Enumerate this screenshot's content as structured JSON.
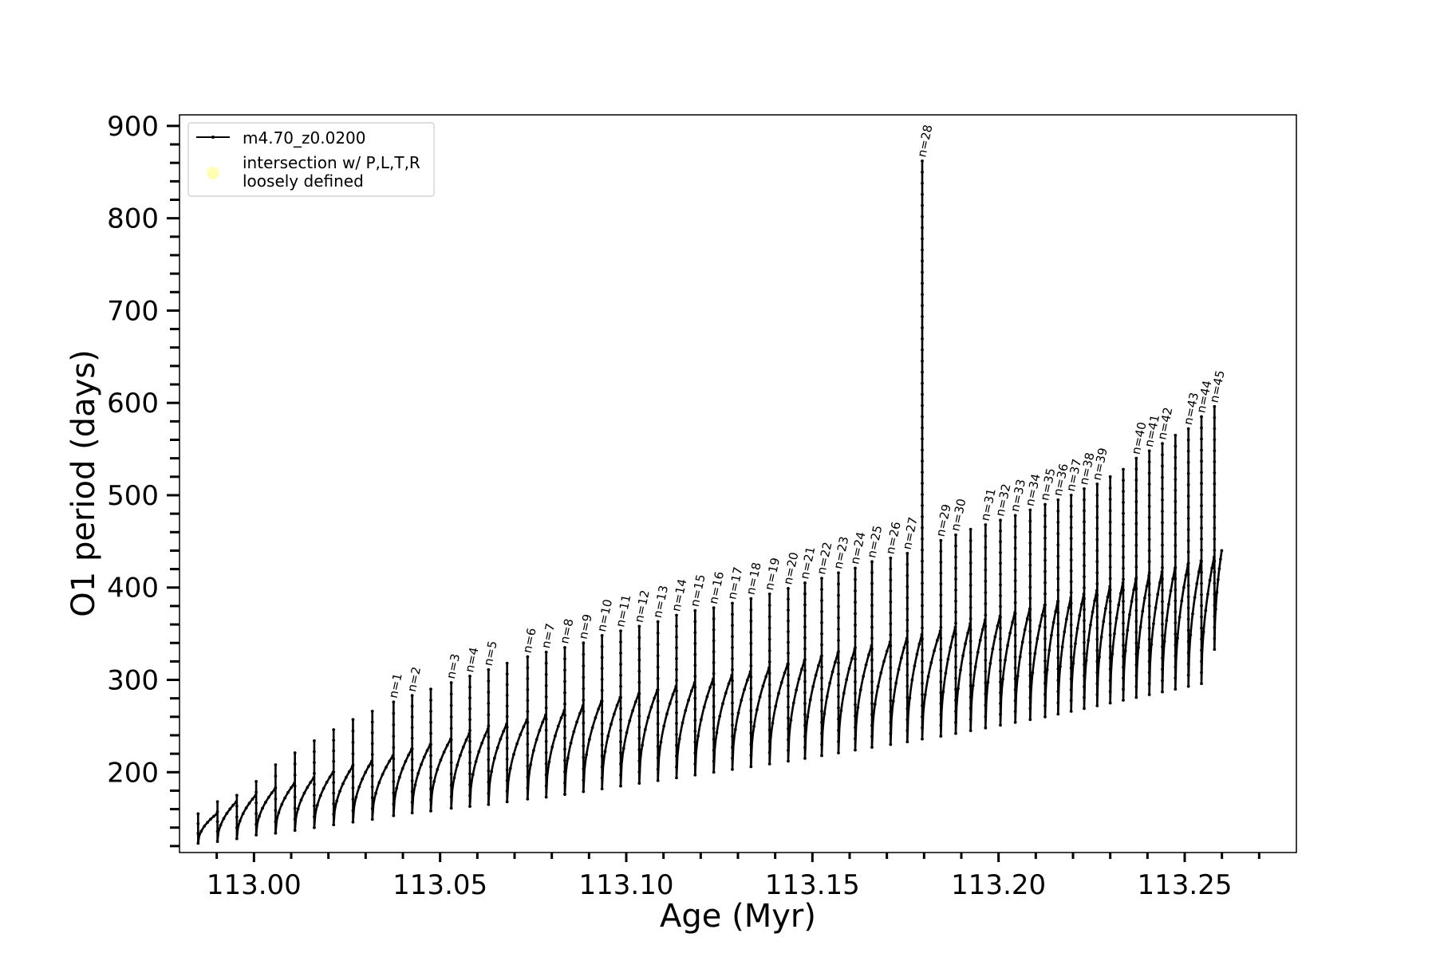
{
  "chart_data": {
    "type": "line",
    "xlabel": "Age (Myr)",
    "ylabel": "O1 period (days)",
    "xlim": [
      112.98,
      113.28
    ],
    "ylim": [
      113,
      912
    ],
    "x_ticks": [
      113.0,
      113.05,
      113.1,
      113.15,
      113.2,
      113.25
    ],
    "x_tick_labels": [
      "113.00",
      "113.05",
      "113.10",
      "113.15",
      "113.20",
      "113.25"
    ],
    "y_ticks": [
      200,
      300,
      400,
      500,
      600,
      700,
      800,
      900
    ],
    "y_tick_labels": [
      "200",
      "300",
      "400",
      "500",
      "600",
      "700",
      "800",
      "900"
    ],
    "grid": false,
    "legend_position": "top-left",
    "legend": {
      "entries": [
        {
          "label": "m4.70_z0.0200",
          "kind": "line",
          "color": "#000000"
        },
        {
          "label_lines": [
            "intersection w/ P,L,T,R",
            "loosely defined"
          ],
          "kind": "marker",
          "color": "#ffffb3"
        }
      ]
    },
    "series": [
      {
        "name": "m4.70_z0.0200",
        "color": "#000000",
        "description_of_shape": "sawtooth: repeated pulses, each rising from a trough to a local max then dropping",
        "pulses": [
          {
            "x": 112.985,
            "trough": 123,
            "peak": 155,
            "spike": null,
            "label": null
          },
          {
            "x": 112.9902,
            "trough": 125,
            "peak": 168,
            "spike": null,
            "label": null
          },
          {
            "x": 112.9954,
            "trough": 128,
            "peak": 175,
            "spike": null,
            "label": null
          },
          {
            "x": 113.0006,
            "trough": 132,
            "peak": 182,
            "spike": 190,
            "label": null
          },
          {
            "x": 113.0058,
            "trough": 134,
            "peak": 188,
            "spike": 208,
            "label": null
          },
          {
            "x": 113.011,
            "trough": 137,
            "peak": 194,
            "spike": 221,
            "label": null
          },
          {
            "x": 113.0162,
            "trough": 140,
            "peak": 200,
            "spike": 234,
            "label": null
          },
          {
            "x": 113.0214,
            "trough": 143,
            "peak": 206,
            "spike": 246,
            "label": null
          },
          {
            "x": 113.0266,
            "trough": 146,
            "peak": 212,
            "spike": 257,
            "label": null
          },
          {
            "x": 113.0318,
            "trough": 149,
            "peak": 218,
            "spike": 266,
            "label": null
          },
          {
            "x": 113.0375,
            "trough": 153,
            "peak": 225,
            "spike": 276,
            "label": "n=1"
          },
          {
            "x": 113.0425,
            "trough": 156,
            "peak": 230,
            "spike": 283,
            "label": "n=2"
          },
          {
            "x": 113.0475,
            "trough": 158,
            "peak": 236,
            "spike": 290,
            "label": null
          },
          {
            "x": 113.053,
            "trough": 161,
            "peak": 242,
            "spike": 297,
            "label": "n=3"
          },
          {
            "x": 113.058,
            "trough": 163,
            "peak": 247,
            "spike": 304,
            "label": "n=4"
          },
          {
            "x": 113.063,
            "trough": 165,
            "peak": 252,
            "spike": 311,
            "label": "n=5"
          },
          {
            "x": 113.068,
            "trough": 168,
            "peak": 257,
            "spike": 318,
            "label": null
          },
          {
            "x": 113.0735,
            "trough": 171,
            "peak": 262,
            "spike": 325,
            "label": "n=6"
          },
          {
            "x": 113.0785,
            "trough": 173,
            "peak": 267,
            "spike": 330,
            "label": "n=7"
          },
          {
            "x": 113.0835,
            "trough": 176,
            "peak": 272,
            "spike": 335,
            "label": "n=8"
          },
          {
            "x": 113.0885,
            "trough": 179,
            "peak": 277,
            "spike": 340,
            "label": "n=9"
          },
          {
            "x": 113.0935,
            "trough": 182,
            "peak": 281,
            "spike": 348,
            "label": "n=10"
          },
          {
            "x": 113.0985,
            "trough": 185,
            "peak": 285,
            "spike": 353,
            "label": "n=11"
          },
          {
            "x": 113.1035,
            "trough": 188,
            "peak": 289,
            "spike": 358,
            "label": "n=12"
          },
          {
            "x": 113.1085,
            "trough": 191,
            "peak": 293,
            "spike": 363,
            "label": "n=13"
          },
          {
            "x": 113.1135,
            "trough": 194,
            "peak": 297,
            "spike": 370,
            "label": "n=14"
          },
          {
            "x": 113.1185,
            "trough": 197,
            "peak": 301,
            "spike": 375,
            "label": "n=15"
          },
          {
            "x": 113.1235,
            "trough": 200,
            "peak": 305,
            "spike": 378,
            "label": "n=16"
          },
          {
            "x": 113.1285,
            "trough": 203,
            "peak": 309,
            "spike": 383,
            "label": "n=17"
          },
          {
            "x": 113.1335,
            "trough": 206,
            "peak": 313,
            "spike": 388,
            "label": "n=18"
          },
          {
            "x": 113.1385,
            "trough": 209,
            "peak": 317,
            "spike": 393,
            "label": "n=19"
          },
          {
            "x": 113.1435,
            "trough": 212,
            "peak": 321,
            "spike": 399,
            "label": "n=20"
          },
          {
            "x": 113.148,
            "trough": 215,
            "peak": 325,
            "spike": 405,
            "label": "n=21"
          },
          {
            "x": 113.1525,
            "trough": 218,
            "peak": 329,
            "spike": 410,
            "label": "n=22"
          },
          {
            "x": 113.157,
            "trough": 221,
            "peak": 333,
            "spike": 416,
            "label": "n=23"
          },
          {
            "x": 113.1615,
            "trough": 224,
            "peak": 337,
            "spike": 421,
            "label": "n=24"
          },
          {
            "x": 113.166,
            "trough": 227,
            "peak": 341,
            "spike": 428,
            "label": "n=25"
          },
          {
            "x": 113.171,
            "trough": 230,
            "peak": 345,
            "spike": 432,
            "label": "n=26"
          },
          {
            "x": 113.1755,
            "trough": 233,
            "peak": 349,
            "spike": 437,
            "label": "n=27"
          },
          {
            "x": 113.1795,
            "trough": 236,
            "peak": 353,
            "spike": 862,
            "label": "n=28"
          },
          {
            "x": 113.1845,
            "trough": 239,
            "peak": 357,
            "spike": 451,
            "label": "n=29"
          },
          {
            "x": 113.1885,
            "trough": 242,
            "peak": 361,
            "spike": 457,
            "label": "n=30"
          },
          {
            "x": 113.1925,
            "trough": 245,
            "peak": 365,
            "spike": 463,
            "label": null
          },
          {
            "x": 113.1965,
            "trough": 248,
            "peak": 369,
            "spike": 468,
            "label": "n=31"
          },
          {
            "x": 113.2005,
            "trough": 251,
            "peak": 373,
            "spike": 473,
            "label": "n=32"
          },
          {
            "x": 113.2045,
            "trough": 254,
            "peak": 377,
            "spike": 478,
            "label": "n=33"
          },
          {
            "x": 113.2085,
            "trough": 257,
            "peak": 381,
            "spike": 484,
            "label": "n=34"
          },
          {
            "x": 113.2125,
            "trough": 260,
            "peak": 385,
            "spike": 490,
            "label": "n=35"
          },
          {
            "x": 113.216,
            "trough": 263,
            "peak": 389,
            "spike": 495,
            "label": "n=36"
          },
          {
            "x": 113.2195,
            "trough": 266,
            "peak": 393,
            "spike": 500,
            "label": "n=37"
          },
          {
            "x": 113.223,
            "trough": 269,
            "peak": 397,
            "spike": 507,
            "label": "n=38"
          },
          {
            "x": 113.2265,
            "trough": 272,
            "peak": 401,
            "spike": 512,
            "label": "n=39"
          },
          {
            "x": 113.23,
            "trough": 275,
            "peak": 405,
            "spike": 520,
            "label": null
          },
          {
            "x": 113.2335,
            "trough": 278,
            "peak": 409,
            "spike": 528,
            "label": null
          },
          {
            "x": 113.237,
            "trough": 281,
            "peak": 413,
            "spike": 540,
            "label": "n=40"
          },
          {
            "x": 113.2405,
            "trough": 284,
            "peak": 417,
            "spike": 548,
            "label": "n=41"
          },
          {
            "x": 113.244,
            "trough": 287,
            "peak": 421,
            "spike": 556,
            "label": "n=42"
          },
          {
            "x": 113.2475,
            "trough": 290,
            "peak": 425,
            "spike": 565,
            "label": null
          },
          {
            "x": 113.251,
            "trough": 293,
            "peak": 429,
            "spike": 572,
            "label": "n=43"
          },
          {
            "x": 113.2545,
            "trough": 296,
            "peak": 433,
            "spike": 585,
            "label": "n=44"
          },
          {
            "x": 113.258,
            "trough": 333,
            "peak": 440,
            "spike": 596,
            "label": "n=45"
          }
        ],
        "final_point": {
          "x": 113.26,
          "y": 441
        }
      }
    ]
  }
}
